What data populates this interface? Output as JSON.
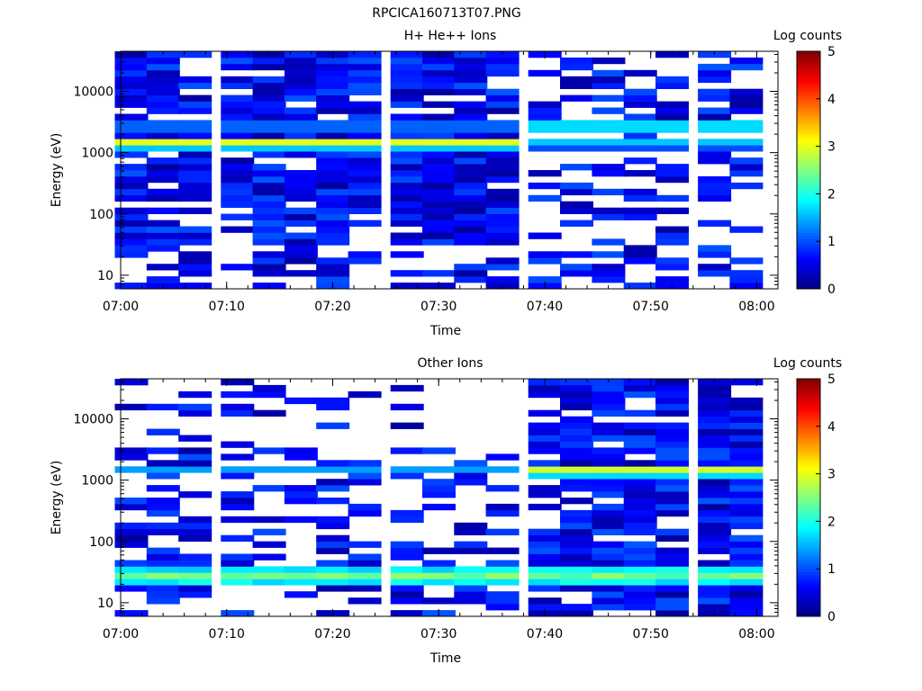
{
  "figure_title": "RPCICA160713T07.PNG",
  "panels": [
    {
      "title": "H+ He++ Ions",
      "xlabel": "Time",
      "ylabel": "Energy (eV)",
      "colorbar_label": "Log counts"
    },
    {
      "title": "Other Ions",
      "xlabel": "Time",
      "ylabel": "Energy (eV)",
      "colorbar_label": "Log counts"
    }
  ],
  "chart_data": [
    {
      "type": "heatmap",
      "title": "H+ He++ Ions",
      "xlabel": "Time",
      "ylabel": "Energy (eV)",
      "x_ticks": [
        "07:00",
        "07:10",
        "07:20",
        "07:30",
        "07:40",
        "07:50",
        "08:00"
      ],
      "xlim": [
        "07:00",
        "08:02"
      ],
      "y_scale": "log",
      "y_ticks": [
        "10",
        "100",
        "1000",
        "10000"
      ],
      "ylim": [
        6,
        45000
      ],
      "colorbar": {
        "label": "Log counts",
        "ticks": [
          "0",
          "1",
          "2",
          "3",
          "4",
          "5"
        ],
        "range": [
          0,
          5
        ],
        "colormap": "jet"
      },
      "time_bins": [
        "07:01",
        "07:04",
        "07:07",
        "07:11",
        "07:14",
        "07:17",
        "07:20",
        "07:23",
        "07:27",
        "07:30",
        "07:33",
        "07:36",
        "07:40",
        "07:43",
        "07:46",
        "07:49",
        "07:52",
        "07:56",
        "07:59"
      ],
      "description_values": {
        "band_center_eV": 1350,
        "band_peak_log_counts_0700_0740": 3.0,
        "band_peak_log_counts_0740_0802": 1.6,
        "secondary_band_eV": 2700,
        "secondary_band_log_counts_0740_0802": 1.7
      }
    },
    {
      "type": "heatmap",
      "title": "Other Ions",
      "xlabel": "Time",
      "ylabel": "Energy (eV)",
      "x_ticks": [
        "07:00",
        "07:10",
        "07:20",
        "07:30",
        "07:40",
        "07:50",
        "08:00"
      ],
      "xlim": [
        "07:00",
        "08:02"
      ],
      "y_scale": "log",
      "y_ticks": [
        "10",
        "100",
        "1000",
        "10000"
      ],
      "ylim": [
        6,
        45000
      ],
      "colorbar": {
        "label": "Log counts",
        "ticks": [
          "0",
          "1",
          "2",
          "3",
          "4",
          "5"
        ],
        "range": [
          0,
          5
        ],
        "colormap": "jet"
      },
      "time_bins": [
        "07:01",
        "07:04",
        "07:07",
        "07:11",
        "07:14",
        "07:17",
        "07:20",
        "07:23",
        "07:27",
        "07:30",
        "07:33",
        "07:36",
        "07:40",
        "07:43",
        "07:46",
        "07:49",
        "07:52",
        "07:56",
        "07:59"
      ],
      "description_values": {
        "band_center_eV": 1350,
        "band_peak_log_counts_0700_0740": 1.4,
        "band_peak_log_counts_0740_0802": 2.9,
        "low_energy_band_eV": 28,
        "low_energy_band_log_counts": 2.6
      }
    }
  ]
}
